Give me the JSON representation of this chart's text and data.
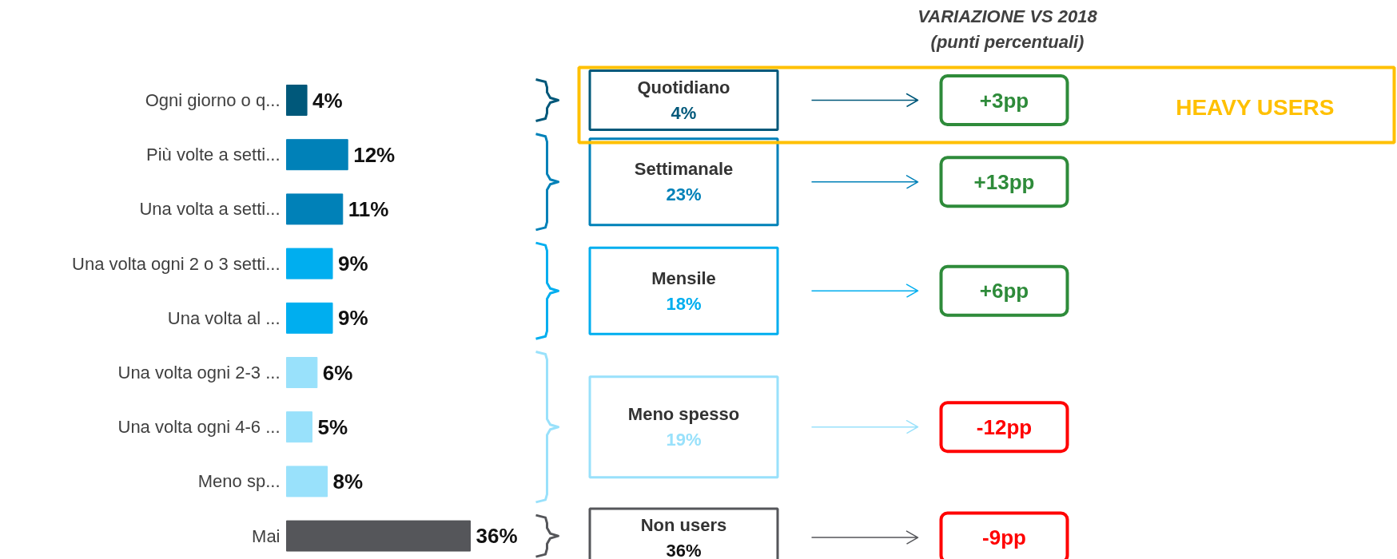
{
  "chart_data": {
    "type": "bar",
    "orientation": "horizontal",
    "title": "VARIAZIONE VS 2018",
    "subtitle": "(punti percentuali)",
    "categories": [
      "Ogni giorno o q...",
      "Più volte a setti...",
      "Una volta a setti...",
      "Una volta ogni 2 o 3 setti...",
      "Una volta al ...",
      "Una volta ogni 2-3 ...",
      "Una volta ogni 4-6 ...",
      "Meno sp...",
      "Mai"
    ],
    "values": [
      4,
      12,
      11,
      9,
      9,
      6,
      5,
      8,
      36
    ],
    "colors": [
      "#00587a",
      "#0081b8",
      "#0081b8",
      "#00aeef",
      "#00aeef",
      "#99e1fb",
      "#99e1fb",
      "#99e1fb",
      "#55565a"
    ],
    "value_labels": [
      "4%",
      "12%",
      "11%",
      "9%",
      "9%",
      "6%",
      "5%",
      "8%",
      "36%"
    ],
    "annotations": [
      "Quotidiano",
      "Settimanale",
      "Mensile",
      "Meno spesso",
      "Non users",
      "4%",
      "23%",
      "18%",
      "19%",
      "36%",
      "+3pp",
      "+13pp",
      "+6pp",
      "-12pp",
      "-9pp",
      "HEAVY USERS"
    ]
  }
}
